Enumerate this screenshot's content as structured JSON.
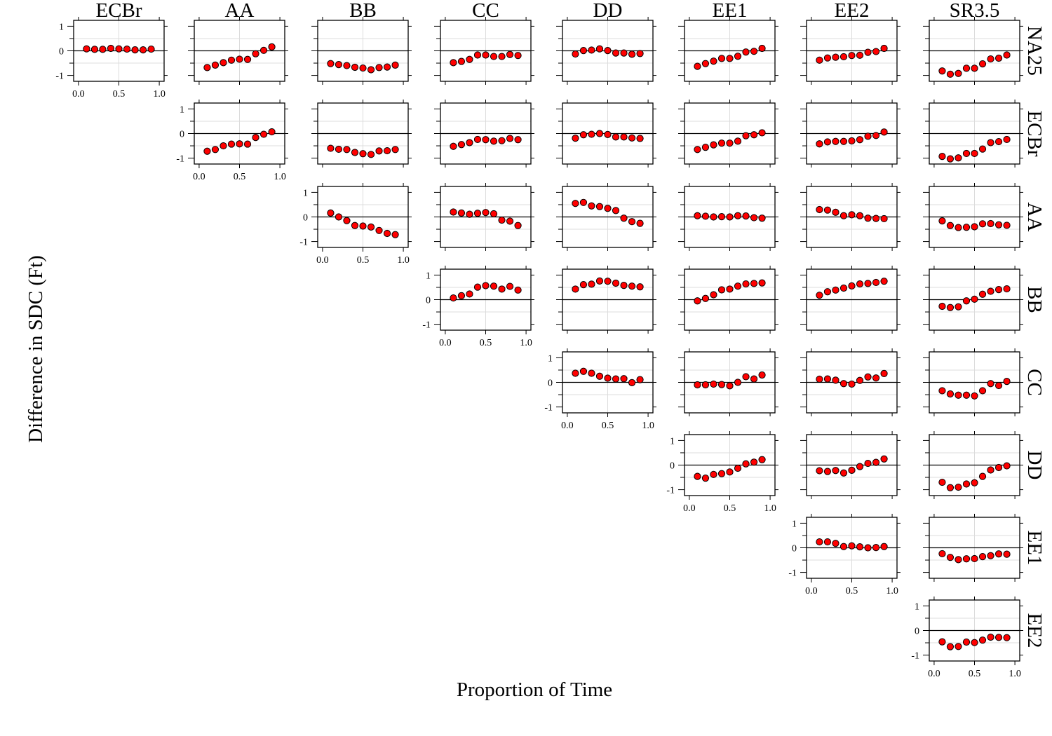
{
  "chart_data": {
    "type": "scatter",
    "xlabel": "Proportion of Time",
    "ylabel": "Difference in SDC (Ft)",
    "columns": [
      "ECBr",
      "AA",
      "BB",
      "CC",
      "DD",
      "EE1",
      "EE2",
      "SR3.5"
    ],
    "rows": [
      "NA25",
      "ECBr",
      "AA",
      "BB",
      "CC",
      "DD",
      "EE1",
      "EE2"
    ],
    "x": [
      0.1,
      0.2,
      0.3,
      0.4,
      0.5,
      0.6,
      0.7,
      0.8,
      0.9
    ],
    "xlim": [
      0,
      1
    ],
    "ylim": [
      -1,
      1
    ],
    "x_ticks": [
      "0.0",
      "0.5",
      "1.0"
    ],
    "y_ticks": [
      "1",
      "0",
      "-1"
    ],
    "hline_at": 0,
    "grid": true,
    "point_color": "#ff0000",
    "point_edge_color": "#000000",
    "panels": [
      {
        "row": "NA25",
        "col": "ECBr",
        "y": [
          0.08,
          0.06,
          0.06,
          0.1,
          0.08,
          0.07,
          0.04,
          0.04,
          0.07
        ]
      },
      {
        "row": "NA25",
        "col": "AA",
        "y": [
          -0.68,
          -0.58,
          -0.48,
          -0.38,
          -0.34,
          -0.35,
          -0.12,
          0.02,
          0.16
        ]
      },
      {
        "row": "NA25",
        "col": "BB",
        "y": [
          -0.52,
          -0.56,
          -0.6,
          -0.67,
          -0.7,
          -0.77,
          -0.68,
          -0.66,
          -0.58
        ]
      },
      {
        "row": "NA25",
        "col": "CC",
        "y": [
          -0.48,
          -0.43,
          -0.35,
          -0.17,
          -0.17,
          -0.23,
          -0.23,
          -0.15,
          -0.19
        ]
      },
      {
        "row": "NA25",
        "col": "DD",
        "y": [
          -0.13,
          0.01,
          0.03,
          0.08,
          0.01,
          -0.09,
          -0.09,
          -0.14,
          -0.11
        ]
      },
      {
        "row": "NA25",
        "col": "EE1",
        "y": [
          -0.63,
          -0.52,
          -0.42,
          -0.31,
          -0.31,
          -0.22,
          -0.05,
          -0.02,
          0.1
        ]
      },
      {
        "row": "NA25",
        "col": "EE2",
        "y": [
          -0.38,
          -0.29,
          -0.26,
          -0.24,
          -0.19,
          -0.18,
          -0.06,
          -0.03,
          0.1
        ]
      },
      {
        "row": "NA25",
        "col": "SR3.5",
        "y": [
          -0.82,
          -0.95,
          -0.92,
          -0.71,
          -0.71,
          -0.53,
          -0.33,
          -0.3,
          -0.17
        ]
      },
      {
        "row": "ECBr",
        "col": "AA",
        "y": [
          -0.72,
          -0.65,
          -0.5,
          -0.43,
          -0.42,
          -0.43,
          -0.16,
          -0.03,
          0.07
        ]
      },
      {
        "row": "ECBr",
        "col": "BB",
        "y": [
          -0.6,
          -0.64,
          -0.65,
          -0.77,
          -0.82,
          -0.85,
          -0.71,
          -0.7,
          -0.65
        ]
      },
      {
        "row": "ECBr",
        "col": "CC",
        "y": [
          -0.52,
          -0.45,
          -0.37,
          -0.24,
          -0.25,
          -0.31,
          -0.29,
          -0.2,
          -0.25
        ]
      },
      {
        "row": "ECBr",
        "col": "DD",
        "y": [
          -0.19,
          -0.05,
          -0.03,
          0.0,
          -0.04,
          -0.14,
          -0.14,
          -0.18,
          -0.2
        ]
      },
      {
        "row": "ECBr",
        "col": "EE1",
        "y": [
          -0.65,
          -0.56,
          -0.46,
          -0.39,
          -0.39,
          -0.31,
          -0.09,
          -0.05,
          0.03
        ]
      },
      {
        "row": "ECBr",
        "col": "EE2",
        "y": [
          -0.42,
          -0.34,
          -0.32,
          -0.32,
          -0.3,
          -0.25,
          -0.11,
          -0.08,
          0.06
        ]
      },
      {
        "row": "ECBr",
        "col": "SR3.5",
        "y": [
          -0.93,
          -1.03,
          -0.99,
          -0.81,
          -0.81,
          -0.63,
          -0.37,
          -0.33,
          -0.24
        ]
      },
      {
        "row": "AA",
        "col": "BB",
        "y": [
          0.16,
          0.0,
          -0.15,
          -0.35,
          -0.37,
          -0.41,
          -0.55,
          -0.67,
          -0.72
        ]
      },
      {
        "row": "AA",
        "col": "CC",
        "y": [
          0.2,
          0.16,
          0.11,
          0.15,
          0.18,
          0.13,
          -0.13,
          -0.17,
          -0.35
        ]
      },
      {
        "row": "AA",
        "col": "DD",
        "y": [
          0.55,
          0.59,
          0.45,
          0.42,
          0.35,
          0.26,
          -0.05,
          -0.19,
          -0.26
        ]
      },
      {
        "row": "AA",
        "col": "EE1",
        "y": [
          0.05,
          0.03,
          0.0,
          0.01,
          0.0,
          0.05,
          0.04,
          -0.03,
          -0.05
        ]
      },
      {
        "row": "AA",
        "col": "EE2",
        "y": [
          0.3,
          0.28,
          0.19,
          0.05,
          0.09,
          0.05,
          -0.05,
          -0.06,
          -0.07
        ]
      },
      {
        "row": "AA",
        "col": "SR3.5",
        "y": [
          -0.16,
          -0.35,
          -0.43,
          -0.42,
          -0.4,
          -0.28,
          -0.27,
          -0.32,
          -0.34
        ]
      },
      {
        "row": "BB",
        "col": "CC",
        "y": [
          0.07,
          0.16,
          0.23,
          0.51,
          0.57,
          0.55,
          0.43,
          0.54,
          0.39
        ]
      },
      {
        "row": "BB",
        "col": "DD",
        "y": [
          0.43,
          0.61,
          0.63,
          0.76,
          0.75,
          0.67,
          0.58,
          0.55,
          0.52
        ]
      },
      {
        "row": "BB",
        "col": "EE1",
        "y": [
          -0.05,
          0.05,
          0.2,
          0.4,
          0.43,
          0.55,
          0.64,
          0.66,
          0.68
        ]
      },
      {
        "row": "BB",
        "col": "EE2",
        "y": [
          0.18,
          0.32,
          0.39,
          0.47,
          0.56,
          0.64,
          0.66,
          0.7,
          0.75
        ]
      },
      {
        "row": "BB",
        "col": "SR3.5",
        "y": [
          -0.27,
          -0.32,
          -0.29,
          -0.05,
          0.02,
          0.22,
          0.34,
          0.41,
          0.44
        ]
      },
      {
        "row": "CC",
        "col": "DD",
        "y": [
          0.37,
          0.45,
          0.37,
          0.25,
          0.17,
          0.14,
          0.15,
          -0.01,
          0.11
        ]
      },
      {
        "row": "CC",
        "col": "EE1",
        "y": [
          -0.1,
          -0.1,
          -0.07,
          -0.09,
          -0.14,
          0.0,
          0.23,
          0.14,
          0.3
        ]
      },
      {
        "row": "CC",
        "col": "EE2",
        "y": [
          0.13,
          0.14,
          0.09,
          -0.05,
          -0.07,
          0.08,
          0.22,
          0.18,
          0.36
        ]
      },
      {
        "row": "CC",
        "col": "SR3.5",
        "y": [
          -0.34,
          -0.47,
          -0.52,
          -0.52,
          -0.55,
          -0.34,
          -0.05,
          -0.13,
          0.04
        ]
      },
      {
        "row": "DD",
        "col": "EE1",
        "y": [
          -0.46,
          -0.53,
          -0.38,
          -0.35,
          -0.28,
          -0.13,
          0.05,
          0.12,
          0.22
        ]
      },
      {
        "row": "DD",
        "col": "EE2",
        "y": [
          -0.23,
          -0.26,
          -0.22,
          -0.32,
          -0.21,
          -0.06,
          0.07,
          0.11,
          0.25
        ]
      },
      {
        "row": "DD",
        "col": "SR3.5",
        "y": [
          -0.7,
          -0.92,
          -0.9,
          -0.77,
          -0.72,
          -0.46,
          -0.2,
          -0.1,
          -0.03
        ]
      },
      {
        "row": "EE1",
        "col": "EE2",
        "y": [
          0.24,
          0.24,
          0.18,
          0.05,
          0.08,
          0.04,
          0.0,
          0.01,
          0.05
        ]
      },
      {
        "row": "EE1",
        "col": "SR3.5",
        "y": [
          -0.24,
          -0.39,
          -0.48,
          -0.45,
          -0.44,
          -0.36,
          -0.32,
          -0.25,
          -0.26
        ]
      },
      {
        "row": "EE2",
        "col": "SR3.5",
        "y": [
          -0.46,
          -0.66,
          -0.65,
          -0.47,
          -0.49,
          -0.39,
          -0.27,
          -0.28,
          -0.29
        ]
      }
    ]
  }
}
